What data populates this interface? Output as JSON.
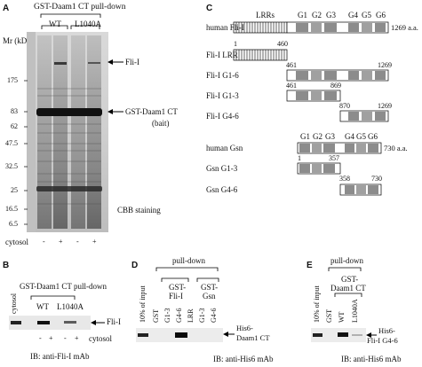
{
  "panelA": {
    "letter": "A",
    "title": "GST-Daam1 CT pull-down",
    "group_wt": "WT",
    "group_mut": "L1040A",
    "mr_label": "Mr (kD)",
    "markers": [
      "175",
      "83",
      "62",
      "47.5",
      "32.5",
      "25",
      "16.5",
      "6.5"
    ],
    "band_fli": "Fli-I",
    "band_bait_1": "GST-Daam1 CT",
    "band_bait_2": "(bait)",
    "stain": "CBB staining",
    "cytosol_label": "cytosol",
    "cytosol_signs": [
      "-",
      "+",
      "-",
      "+"
    ]
  },
  "panelB": {
    "letter": "B",
    "title": "GST-Daam1 CT pull-down",
    "lane_cytosol": "cytosol",
    "group_wt": "WT",
    "group_mut": "L1040A",
    "band": "Fli-I",
    "signs": [
      "-",
      "+",
      "-",
      "+"
    ],
    "cytosol_label": "cytosol",
    "ib": "IB: anti-Fli-I mAb"
  },
  "panelC": {
    "letter": "C",
    "domains_fli": [
      "LRRs",
      "G1",
      "G2",
      "G3",
      "G4",
      "G5",
      "G6"
    ],
    "domains_gsn": [
      "G1",
      "G2",
      "G3",
      "G4",
      "G5",
      "G6"
    ],
    "constructs": [
      {
        "name": "human Fli-I",
        "start": "",
        "end": "",
        "len": "1269 a.a."
      },
      {
        "name": "Fli-I LRR",
        "start": "1",
        "end": "460",
        "len": ""
      },
      {
        "name": "Fli-I G1-6",
        "start": "461",
        "end": "1269",
        "len": ""
      },
      {
        "name": "Fli-I G1-3",
        "start": "461",
        "end": "869",
        "len": ""
      },
      {
        "name": "Fli-I G4-6",
        "start": "870",
        "end": "1269",
        "len": ""
      },
      {
        "name": "human Gsn",
        "start": "",
        "end": "",
        "len": "730 a.a."
      },
      {
        "name": "Gsn G1-3",
        "start": "1",
        "end": "357",
        "len": ""
      },
      {
        "name": "Gsn G4-6",
        "start": "358",
        "end": "730",
        "len": ""
      }
    ]
  },
  "panelD": {
    "letter": "D",
    "pulldown": "pull-down",
    "lanes": [
      "10% of input",
      "GST",
      "G1-3",
      "G4-6",
      "LRR",
      "G1-3",
      "G4-6"
    ],
    "group_fli": "GST-\nFli-I",
    "group_fli_1": "GST-",
    "group_fli_2": "Fli-I",
    "group_gsn_1": "GST-",
    "group_gsn_2": "Gsn",
    "band_1": "His6-",
    "band_2": "Daam1 CT",
    "ib": "IB: anti-His6 mAb"
  },
  "panelE": {
    "letter": "E",
    "pulldown": "pull-down",
    "lanes": [
      "10% of input",
      "GST",
      "WT",
      "L1040A"
    ],
    "group_1": "GST-",
    "group_2": "Daam1 CT",
    "band_1": "His6-",
    "band_2": "Fli-I G4-6",
    "ib": "IB: anti-His6 mAb"
  },
  "colors": {
    "gel_bg": "#c9c9c9",
    "blot_bg": "#e6e6e6",
    "domain_dark": "#8c8c8c",
    "domain_light": "#c4c4c4",
    "band": "#1a1a1a"
  }
}
